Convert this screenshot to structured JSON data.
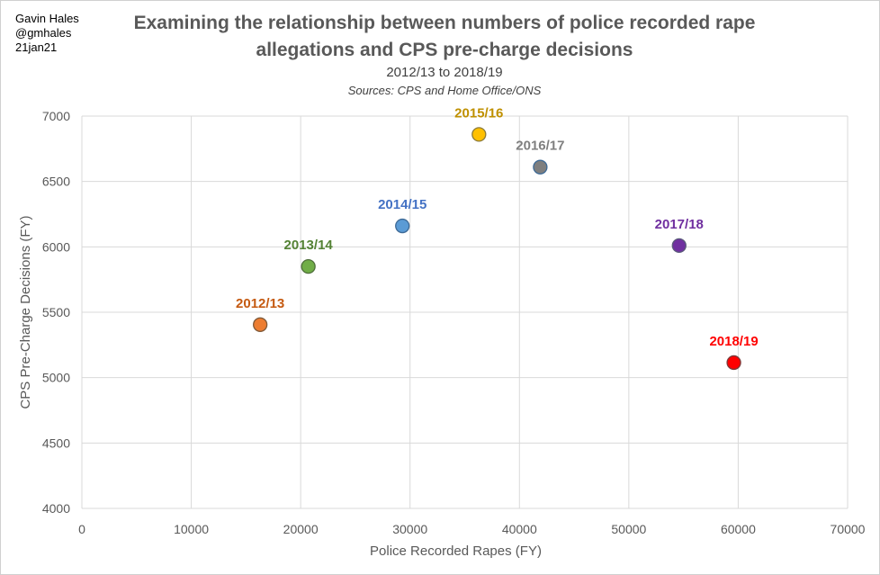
{
  "header": {
    "author_name": "Gavin Hales",
    "author_handle": "@gmhales",
    "date": "21jan21",
    "title_line1": "Examining the relationship between numbers of police recorded rape",
    "title_line2": "allegations and CPS pre-charge decisions",
    "subtitle": "2012/13 to 2018/19",
    "sources": "Sources: CPS and Home Office/ONS"
  },
  "chart_data": {
    "type": "scatter",
    "xlabel": "Police Recorded Rapes (FY)",
    "ylabel": "CPS Pre-Charge Decisions (FY)",
    "xlim": [
      0,
      70000
    ],
    "ylim": [
      4000,
      7000
    ],
    "x_ticks": [
      0,
      10000,
      20000,
      30000,
      40000,
      50000,
      60000,
      70000
    ],
    "y_ticks": [
      4000,
      4500,
      5000,
      5500,
      6000,
      6500,
      7000
    ],
    "grid": "on",
    "points": [
      {
        "label": "2012/13",
        "x": 16300,
        "y": 5405,
        "color": "#ED7D31",
        "edge": "#7F5A3A"
      },
      {
        "label": "2013/14",
        "x": 20700,
        "y": 5850,
        "color": "#70AD47",
        "edge": "#4E6E3A"
      },
      {
        "label": "2014/15",
        "x": 29300,
        "y": 6160,
        "color": "#5B9BD5",
        "edge": "#3E6A96"
      },
      {
        "label": "2015/16",
        "x": 36300,
        "y": 6860,
        "color": "#FFC000",
        "edge": "#8A7A3A"
      },
      {
        "label": "2016/17",
        "x": 41900,
        "y": 6610,
        "color": "#7F7F7F",
        "edge": "#3E6A96"
      },
      {
        "label": "2017/18",
        "x": 54600,
        "y": 6010,
        "color": "#7030A0",
        "edge": "#5A5A7A"
      },
      {
        "label": "2018/19",
        "x": 59600,
        "y": 5115,
        "color": "#FF0000",
        "edge": "#7A3A3A"
      }
    ],
    "label_colors": {
      "2012/13": "#C55A11",
      "2013/14": "#548235",
      "2014/15": "#4472C4",
      "2015/16": "#BF9000",
      "2016/17": "#7F7F7F",
      "2017/18": "#7030A0",
      "2018/19": "#FF0000"
    }
  }
}
